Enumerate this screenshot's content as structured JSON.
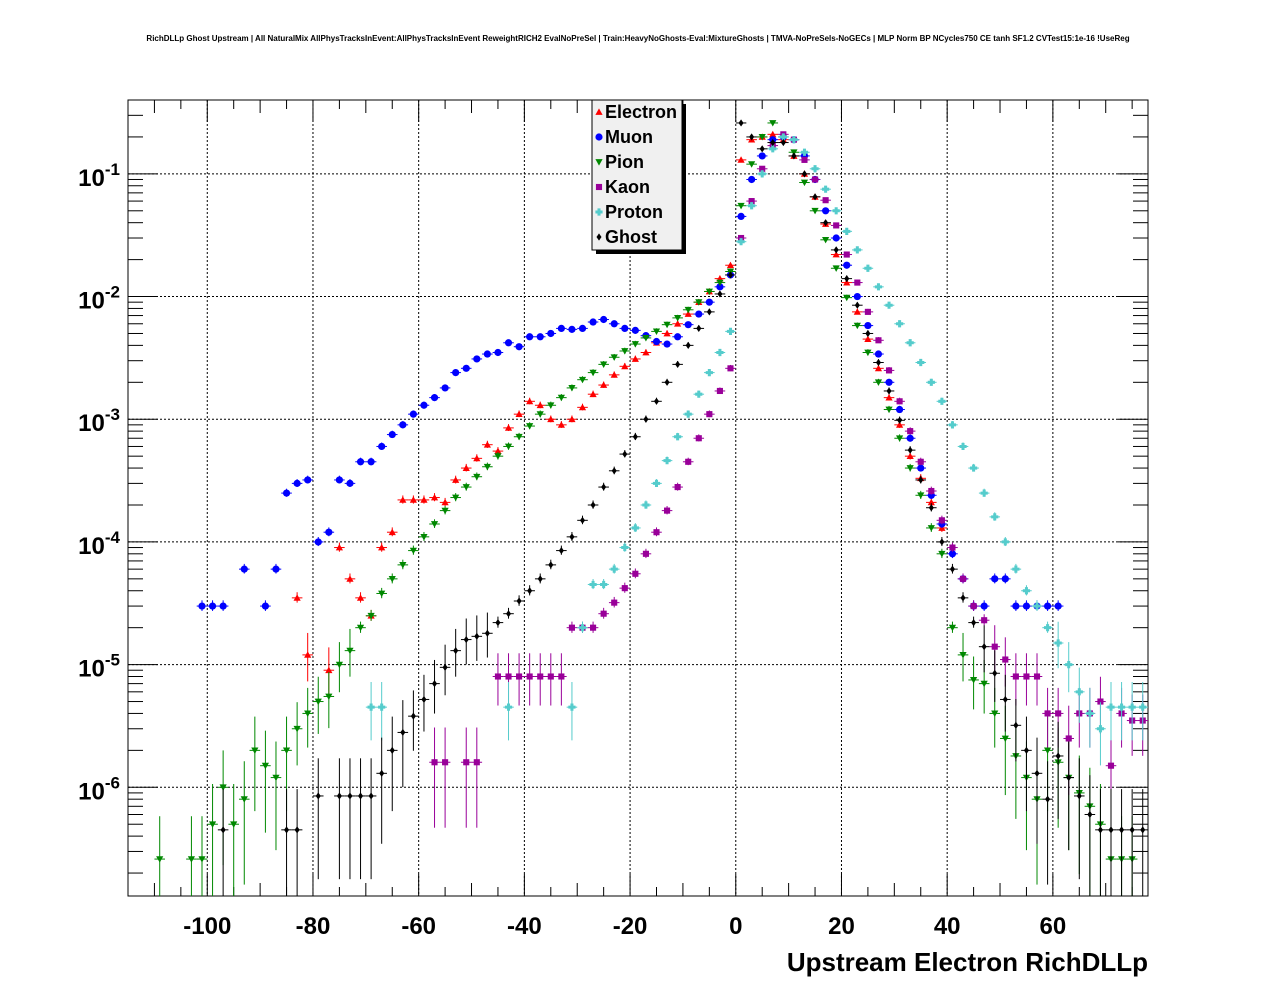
{
  "chart_data": {
    "type": "scatter",
    "title": "RichDLLp Ghost Upstream | All NaturalMix AllPhysTracksInEvent:AllPhysTracksInEvent ReweightRICH2 EvalNoPreSel | Train:HeavyNoGhosts-Eval:MixtureGhosts | TMVA-NoPreSels-NoGECs | MLP Norm BP NCycles750 CE tanh SF1.2 CVTest15:1e-16 !UseReg",
    "xlabel": "Upstream Electron RichDLLp",
    "ylabel": "",
    "xlim": [
      -115,
      78
    ],
    "ylim": [
      1.3e-07,
      0.4
    ],
    "yscale": "log",
    "grid": true,
    "legend_position": "top-center",
    "x_ticks": [
      -100,
      -80,
      -60,
      -40,
      -20,
      0,
      20,
      40,
      60
    ],
    "x_tick_labels": [
      "-100",
      "-80",
      "-60",
      "-40",
      "-20",
      "0",
      "20",
      "40",
      "60"
    ],
    "y_ticks": [
      1e-06,
      1e-05,
      0.0001,
      0.001,
      0.01,
      0.1
    ],
    "y_tick_labels": [
      {
        "base": "10",
        "exp": "-6"
      },
      {
        "base": "10",
        "exp": "-5"
      },
      {
        "base": "10",
        "exp": "-4"
      },
      {
        "base": "10",
        "exp": "-3"
      },
      {
        "base": "10",
        "exp": "-2"
      },
      {
        "base": "10",
        "exp": "-1"
      }
    ],
    "series": [
      {
        "name": "Electron",
        "color": "#ff0000",
        "marker": "triangle-up",
        "x": [
          -83,
          -81,
          -77,
          -75,
          -73,
          -71,
          -69,
          -67,
          -65,
          -63,
          -61,
          -59,
          -57,
          -55,
          -53,
          -51,
          -49,
          -47,
          -45,
          -43,
          -41,
          -39,
          -37,
          -35,
          -33,
          -31,
          -29,
          -27,
          -25,
          -23,
          -21,
          -19,
          -17,
          -15,
          -13,
          -11,
          -9,
          -7,
          -5,
          -3,
          -1,
          1,
          3,
          5,
          7,
          9,
          11,
          13,
          15,
          17,
          19,
          21,
          23,
          25,
          27,
          29,
          31,
          33,
          35,
          37,
          39
        ],
        "y": [
          3.5e-05,
          1.2e-05,
          9e-06,
          9e-05,
          5e-05,
          3.5e-05,
          2.5e-05,
          9e-05,
          0.00012,
          0.00022,
          0.00022,
          0.00022,
          0.00023,
          0.00021,
          0.00032,
          0.0004,
          0.00048,
          0.00062,
          0.00055,
          0.00085,
          0.0011,
          0.0014,
          0.0013,
          0.001,
          0.0009,
          0.001,
          0.00125,
          0.0016,
          0.0019,
          0.0023,
          0.0027,
          0.0031,
          0.0035,
          0.0042,
          0.005,
          0.006,
          0.0072,
          0.009,
          0.011,
          0.014,
          0.018,
          0.13,
          0.19,
          0.2,
          0.21,
          0.19,
          0.14,
          0.1,
          0.065,
          0.039,
          0.022,
          0.013,
          0.0075,
          0.0045,
          0.0026,
          0.0015,
          0.0009,
          0.0005,
          0.00033,
          0.00021,
          0.00013
        ]
      },
      {
        "name": "Muon",
        "color": "#0000ff",
        "marker": "circle",
        "x": [
          -101,
          -99,
          -97,
          -93,
          -89,
          -87,
          -85,
          -83,
          -81,
          -79,
          -77,
          -75,
          -73,
          -71,
          -69,
          -67,
          -65,
          -63,
          -61,
          -59,
          -57,
          -55,
          -53,
          -51,
          -49,
          -47,
          -45,
          -43,
          -41,
          -39,
          -37,
          -35,
          -33,
          -31,
          -29,
          -27,
          -25,
          -23,
          -21,
          -19,
          -17,
          -15,
          -13,
          -11,
          -9,
          -7,
          -5,
          -3,
          -1,
          1,
          3,
          5,
          7,
          9,
          11,
          13,
          15,
          17,
          19,
          21,
          23,
          25,
          27,
          29,
          31,
          33,
          35,
          37,
          39,
          41,
          43,
          45,
          47,
          49,
          51,
          53,
          55,
          57,
          59,
          61
        ],
        "y": [
          3e-05,
          3e-05,
          3e-05,
          6e-05,
          3e-05,
          6e-05,
          0.00025,
          0.0003,
          0.00032,
          0.0001,
          0.00012,
          0.00032,
          0.0003,
          0.00045,
          0.00045,
          0.0006,
          0.00075,
          0.0009,
          0.0011,
          0.0013,
          0.0015,
          0.0018,
          0.0024,
          0.0026,
          0.0031,
          0.0034,
          0.0035,
          0.0042,
          0.0039,
          0.0047,
          0.0047,
          0.005,
          0.0055,
          0.0054,
          0.0055,
          0.0062,
          0.0065,
          0.006,
          0.0055,
          0.0053,
          0.0048,
          0.0043,
          0.0041,
          0.0047,
          0.0059,
          0.0072,
          0.009,
          0.012,
          0.015,
          0.045,
          0.09,
          0.14,
          0.19,
          0.2,
          0.19,
          0.14,
          0.09,
          0.05,
          0.03,
          0.018,
          0.01,
          0.0058,
          0.0034,
          0.002,
          0.0012,
          0.0007,
          0.0004,
          0.00024,
          0.00014,
          8e-05,
          5e-05,
          3e-05,
          3e-05,
          5e-05,
          5e-05,
          3e-05,
          3e-05,
          3e-05,
          3e-05,
          3e-05
        ]
      },
      {
        "name": "Pion",
        "color": "#008800",
        "marker": "triangle-down",
        "x": [
          -109,
          -103,
          -101,
          -99,
          -97,
          -95,
          -93,
          -91,
          -89,
          -87,
          -85,
          -83,
          -81,
          -79,
          -77,
          -75,
          -73,
          -71,
          -69,
          -67,
          -65,
          -63,
          -61,
          -59,
          -57,
          -55,
          -53,
          -51,
          -49,
          -47,
          -45,
          -43,
          -41,
          -39,
          -37,
          -35,
          -33,
          -31,
          -29,
          -27,
          -25,
          -23,
          -21,
          -19,
          -17,
          -15,
          -13,
          -11,
          -9,
          -7,
          -5,
          -3,
          -1,
          1,
          3,
          5,
          7,
          9,
          11,
          13,
          15,
          17,
          19,
          21,
          23,
          25,
          27,
          29,
          31,
          33,
          35,
          37,
          39,
          41,
          43,
          45,
          47,
          49,
          51,
          53,
          55,
          57,
          59,
          61,
          63,
          65,
          67,
          69,
          71,
          73,
          75
        ],
        "y": [
          2.6e-07,
          2.6e-07,
          2.6e-07,
          5e-07,
          1e-06,
          5e-07,
          8e-07,
          2e-06,
          1.5e-06,
          1.2e-06,
          2e-06,
          3e-06,
          4e-06,
          5e-06,
          5.5e-06,
          1e-05,
          1.3e-05,
          2e-05,
          2.5e-05,
          3.8e-05,
          5e-05,
          6.5e-05,
          8.5e-05,
          0.00011,
          0.00014,
          0.00018,
          0.00023,
          0.00028,
          0.00034,
          0.00041,
          0.0005,
          0.0006,
          0.00072,
          0.00088,
          0.0011,
          0.0013,
          0.0015,
          0.0018,
          0.0021,
          0.0024,
          0.0028,
          0.0032,
          0.0036,
          0.0041,
          0.0046,
          0.0052,
          0.0059,
          0.0067,
          0.0078,
          0.009,
          0.011,
          0.013,
          0.016,
          0.055,
          0.12,
          0.2,
          0.26,
          0.2,
          0.15,
          0.085,
          0.05,
          0.029,
          0.017,
          0.0098,
          0.0058,
          0.0035,
          0.002,
          0.0012,
          0.0007,
          0.0004,
          0.00024,
          0.00013,
          8e-05,
          2e-05,
          1.2e-05,
          7.5e-06,
          7e-06,
          4e-06,
          2.5e-06,
          1.8e-06,
          1.2e-06,
          8e-07,
          2e-06,
          1.6e-06,
          1.2e-06,
          9e-07,
          7e-07,
          5e-07,
          2.6e-07,
          2.6e-07,
          2.6e-07
        ]
      },
      {
        "name": "Kaon",
        "color": "#990099",
        "marker": "square",
        "x": [
          -57,
          -55,
          -51,
          -49,
          -45,
          -43,
          -41,
          -39,
          -37,
          -35,
          -33,
          -31,
          -29,
          -27,
          -25,
          -23,
          -21,
          -19,
          -17,
          -15,
          -13,
          -11,
          -9,
          -7,
          -5,
          -3,
          -1,
          1,
          3,
          5,
          7,
          9,
          11,
          13,
          15,
          17,
          19,
          21,
          23,
          25,
          27,
          29,
          31,
          33,
          35,
          37,
          39,
          41,
          43,
          45,
          47,
          49,
          51,
          53,
          55,
          57,
          59,
          61,
          63,
          65,
          67,
          69,
          71,
          73,
          75,
          77
        ],
        "y": [
          1.6e-06,
          1.6e-06,
          1.6e-06,
          1.6e-06,
          8e-06,
          8e-06,
          8e-06,
          8e-06,
          8e-06,
          8e-06,
          8e-06,
          2e-05,
          2e-05,
          2e-05,
          2.6e-05,
          3.2e-05,
          4.2e-05,
          5.5e-05,
          8e-05,
          0.00012,
          0.00018,
          0.00028,
          0.00045,
          0.0007,
          0.0011,
          0.0017,
          0.0026,
          0.03,
          0.06,
          0.11,
          0.17,
          0.21,
          0.19,
          0.13,
          0.09,
          0.061,
          0.038,
          0.022,
          0.013,
          0.0075,
          0.0044,
          0.0025,
          0.0014,
          0.0008,
          0.00045,
          0.00026,
          0.00015,
          9e-05,
          5e-05,
          3e-05,
          2.3e-05,
          1.4e-05,
          1.1e-05,
          8e-06,
          8e-06,
          8e-06,
          4e-06,
          4e-06,
          2.5e-06,
          4e-06,
          4e-06,
          5e-06,
          1.5e-06,
          4e-06,
          3.5e-06,
          3.5e-06
        ]
      },
      {
        "name": "Proton",
        "color": "#55cccc",
        "marker": "cross",
        "x": [
          -69,
          -67,
          -43,
          -31,
          -29,
          -27,
          -25,
          -23,
          -21,
          -19,
          -17,
          -15,
          -13,
          -11,
          -9,
          -7,
          -5,
          -3,
          -1,
          1,
          3,
          5,
          7,
          9,
          11,
          13,
          15,
          17,
          19,
          21,
          23,
          25,
          27,
          29,
          31,
          33,
          35,
          37,
          39,
          41,
          43,
          45,
          47,
          49,
          51,
          53,
          55,
          57,
          59,
          61,
          63,
          65,
          67,
          69,
          71,
          73,
          75,
          77
        ],
        "y": [
          4.5e-06,
          4.5e-06,
          4.5e-06,
          4.5e-06,
          2e-05,
          4.5e-05,
          4.5e-05,
          6e-05,
          9e-05,
          0.00013,
          0.0002,
          0.0003,
          0.00046,
          0.00072,
          0.0011,
          0.0016,
          0.0024,
          0.0035,
          0.0052,
          0.028,
          0.055,
          0.1,
          0.16,
          0.2,
          0.19,
          0.15,
          0.11,
          0.075,
          0.05,
          0.034,
          0.024,
          0.017,
          0.012,
          0.0085,
          0.006,
          0.0042,
          0.0029,
          0.002,
          0.0014,
          0.0009,
          0.0006,
          0.0004,
          0.00025,
          0.00016,
          0.0001,
          6e-05,
          4e-05,
          3e-05,
          2e-05,
          1.5e-05,
          1e-05,
          6e-06,
          4e-06,
          3e-06,
          4.5e-06,
          4.5e-06,
          4.5e-06,
          4.5e-06
        ]
      },
      {
        "name": "Ghost",
        "color": "#000000",
        "marker": "diamond",
        "x": [
          -97,
          -85,
          -83,
          -79,
          -75,
          -73,
          -71,
          -69,
          -67,
          -65,
          -63,
          -61,
          -59,
          -57,
          -55,
          -53,
          -51,
          -49,
          -47,
          -45,
          -43,
          -41,
          -39,
          -37,
          -35,
          -33,
          -31,
          -29,
          -27,
          -25,
          -23,
          -21,
          -19,
          -17,
          -15,
          -13,
          -11,
          -9,
          -7,
          -5,
          -3,
          -1,
          1,
          3,
          5,
          7,
          9,
          11,
          13,
          15,
          17,
          19,
          21,
          23,
          25,
          27,
          29,
          31,
          33,
          35,
          37,
          39,
          41,
          43,
          45,
          47,
          49,
          51,
          53,
          55,
          57,
          59,
          61,
          63,
          65,
          67,
          69,
          71,
          73,
          75,
          77
        ],
        "y": [
          4.5e-07,
          4.5e-07,
          4.5e-07,
          8.5e-07,
          8.5e-07,
          8.5e-07,
          8.5e-07,
          8.5e-07,
          1.3e-06,
          2e-06,
          2.8e-06,
          3.8e-06,
          5.2e-06,
          7e-06,
          9.5e-06,
          1.3e-05,
          1.6e-05,
          1.7e-05,
          1.8e-05,
          2.2e-05,
          2.6e-05,
          3.3e-05,
          4e-05,
          5e-05,
          6.5e-05,
          8.5e-05,
          0.00011,
          0.00015,
          0.0002,
          0.00028,
          0.00038,
          0.00052,
          0.00072,
          0.001,
          0.0014,
          0.002,
          0.0028,
          0.004,
          0.0055,
          0.0075,
          0.0105,
          0.015,
          0.26,
          0.2,
          0.16,
          0.18,
          0.18,
          0.14,
          0.1,
          0.065,
          0.04,
          0.024,
          0.014,
          0.0085,
          0.005,
          0.0029,
          0.0017,
          0.00098,
          0.00056,
          0.00032,
          0.00019,
          0.0001,
          6e-05,
          3.5e-05,
          2.2e-05,
          1.4e-05,
          8.5e-06,
          5.2e-06,
          3.2e-06,
          2e-06,
          1.3e-06,
          8e-07,
          1.8e-06,
          1.2e-06,
          8.5e-07,
          6e-07,
          4.5e-07,
          4.5e-07,
          4.5e-07,
          4.5e-07,
          4.5e-07
        ]
      }
    ]
  }
}
